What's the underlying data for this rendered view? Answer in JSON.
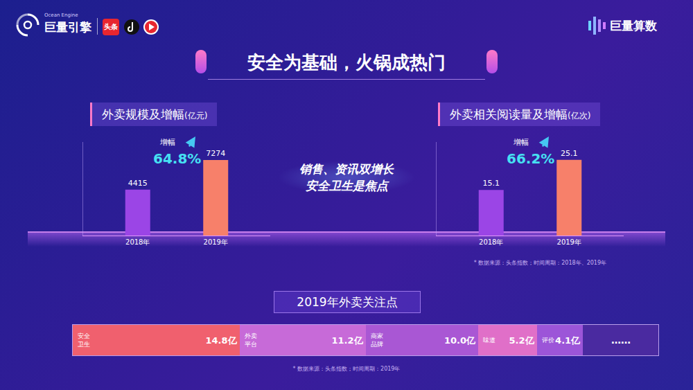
{
  "header": {
    "left_logo_sub": "Ocean Engine",
    "left_logo": "巨量引擎",
    "app_badge": "头条",
    "right_logo": "巨量算数"
  },
  "title": "安全为基础，火锅成热门",
  "center_text": [
    "销售、资讯双增长",
    "安全卫生是焦点"
  ],
  "chart_data": [
    {
      "type": "bar",
      "title": "外卖规模及增幅(亿元)",
      "categories": [
        "2018年",
        "2019年"
      ],
      "values": [
        4415,
        7274
      ],
      "colors": [
        "#9b45e6",
        "#f7806a"
      ],
      "ylim": [
        0,
        9000
      ],
      "yticks": [],
      "grid": false,
      "data_labels": true,
      "tick_labels": "x",
      "annotations": [
        "增幅",
        "64.8%"
      ]
    },
    {
      "type": "bar",
      "title": "外卖相关阅读量及增幅(亿次)",
      "categories": [
        "2018年",
        "2019年"
      ],
      "values": [
        15.1,
        25.1
      ],
      "colors": [
        "#9b45e6",
        "#f7806a"
      ],
      "ylim": [
        0,
        31
      ],
      "yticks": [],
      "grid": false,
      "data_labels": true,
      "tick_labels": "x",
      "annotations": [
        "增幅",
        "66.2%"
      ],
      "note": "* 数据来源：头条指数；时间周期：2018年、2019年"
    },
    {
      "type": "bar",
      "title": "2019年外卖关注点",
      "orientation": "horizontal",
      "stacked": true,
      "categories": [
        null
      ],
      "series": [
        {
          "name": "安全卫生",
          "color": "#f0606e",
          "values": [
            14.8
          ],
          "value_labels": [
            "14.8亿"
          ]
        },
        {
          "name": "外卖平台",
          "color": "#c76ad8",
          "values": [
            11.2
          ],
          "value_labels": [
            "11.2亿"
          ]
        },
        {
          "name": "商家品牌",
          "color": "#a957d4",
          "values": [
            10.0
          ],
          "value_labels": [
            "10.0亿"
          ]
        },
        {
          "name": "味道",
          "color": "#e06fc8",
          "values": [
            5.2
          ],
          "value_labels": [
            "5.2亿"
          ]
        },
        {
          "name": "评价",
          "color": "#9c55d8",
          "values": [
            4.1
          ],
          "value_labels": [
            "4.1亿"
          ]
        }
      ],
      "xlim": [
        0,
        52
      ],
      "xticks": [],
      "grid": false,
      "data_labels": true,
      "tick_labels": false,
      "annotations": [
        "……"
      ],
      "note": "* 数据来源：头条指数；时间周期：2019年"
    }
  ]
}
